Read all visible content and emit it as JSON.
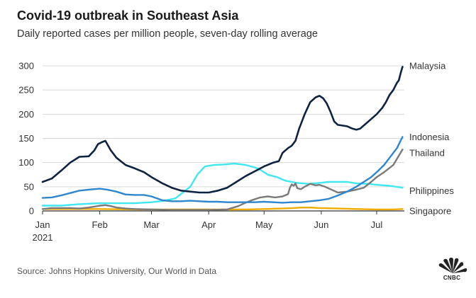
{
  "title": "Covid-19 outbreak in Southeast Asia",
  "subtitle": "Daily reported cases per million people, seven-day rolling average",
  "source": "Source: Johns Hopkins University, Our World in Data",
  "logo_text": "CNBC",
  "chart_data": {
    "type": "line",
    "title": "Covid-19 outbreak in Southeast Asia",
    "ylabel": "Daily reported cases per million people, seven-day rolling average",
    "xlabel": "",
    "ylim": [
      0,
      300
    ],
    "xlim": [
      0,
      196
    ],
    "y_ticks": [
      0,
      50,
      100,
      150,
      200,
      250,
      300
    ],
    "x_ticks": [
      {
        "pos": 0,
        "label": "Jan",
        "sublabel": "2021"
      },
      {
        "pos": 31,
        "label": "Feb",
        "sublabel": ""
      },
      {
        "pos": 59,
        "label": "Mar",
        "sublabel": ""
      },
      {
        "pos": 90,
        "label": "Apr",
        "sublabel": ""
      },
      {
        "pos": 120,
        "label": "May",
        "sublabel": ""
      },
      {
        "pos": 151,
        "label": "Jun",
        "sublabel": ""
      },
      {
        "pos": 181,
        "label": "Jul",
        "sublabel": ""
      }
    ],
    "grid": true,
    "series": [
      {
        "name": "Philippines",
        "color": "#3ee8f0",
        "x": [
          0,
          10,
          20,
          31,
          40,
          50,
          59,
          66,
          72,
          80,
          84,
          88,
          93,
          98,
          104,
          110,
          115,
          118,
          122,
          125,
          127,
          130,
          132,
          138,
          144,
          150,
          155,
          160,
          165,
          170,
          176,
          181,
          188,
          195
        ],
        "y": [
          11,
          11,
          14,
          16,
          16,
          16,
          18,
          21,
          26,
          50,
          76,
          92,
          95,
          96,
          98,
          95,
          90,
          85,
          75,
          72,
          70,
          65,
          62,
          58,
          56,
          58,
          60,
          60,
          60,
          57,
          56,
          54,
          52,
          48
        ]
      },
      {
        "name": "Singapore",
        "color": "#f0ab00",
        "x": [
          0,
          20,
          31,
          50,
          70,
          90,
          110,
          120,
          130,
          136,
          140,
          145,
          150,
          160,
          170,
          181,
          190,
          195
        ],
        "y": [
          4,
          4,
          4,
          3,
          3,
          3,
          3,
          4,
          5,
          6,
          7,
          7,
          6,
          5,
          4,
          3,
          3,
          4
        ]
      },
      {
        "name": "Thailand",
        "color": "#7a7a7a",
        "x": [
          0,
          5,
          10,
          15,
          20,
          25,
          28,
          31,
          34,
          37,
          40,
          45,
          50,
          59,
          70,
          80,
          90,
          100,
          106,
          110,
          114,
          118,
          122,
          126,
          130,
          133,
          134,
          135,
          136,
          137,
          138,
          140,
          142,
          145,
          148,
          150,
          153,
          156,
          160,
          165,
          170,
          174,
          178,
          181,
          185,
          190,
          195
        ],
        "y": [
          4,
          6,
          6,
          6,
          5,
          7,
          9,
          11,
          12,
          10,
          7,
          5,
          4,
          3,
          2,
          2,
          2,
          3,
          10,
          17,
          23,
          28,
          30,
          28,
          30,
          35,
          48,
          55,
          52,
          57,
          47,
          45,
          50,
          56,
          53,
          54,
          50,
          45,
          38,
          40,
          44,
          48,
          60,
          70,
          80,
          95,
          127
        ]
      },
      {
        "name": "Indonesia",
        "color": "#2e86cf",
        "x": [
          0,
          5,
          10,
          15,
          20,
          25,
          31,
          35,
          40,
          45,
          50,
          55,
          59,
          65,
          70,
          75,
          80,
          85,
          90,
          95,
          100,
          105,
          110,
          115,
          120,
          125,
          130,
          135,
          140,
          145,
          150,
          155,
          160,
          165,
          170,
          174,
          178,
          181,
          185,
          188,
          190,
          192,
          195
        ],
        "y": [
          27,
          28,
          32,
          37,
          42,
          44,
          46,
          44,
          40,
          34,
          33,
          33,
          30,
          22,
          20,
          20,
          21,
          20,
          19,
          19,
          18,
          18,
          18,
          18,
          19,
          18,
          17,
          18,
          18,
          20,
          22,
          25,
          32,
          40,
          50,
          60,
          70,
          80,
          95,
          110,
          120,
          130,
          153
        ]
      },
      {
        "name": "Malaysia",
        "color": "#0d2341",
        "x": [
          0,
          5,
          10,
          15,
          20,
          25,
          28,
          30,
          32,
          34,
          37,
          40,
          45,
          50,
          55,
          59,
          65,
          70,
          75,
          80,
          85,
          90,
          95,
          100,
          105,
          110,
          115,
          120,
          125,
          128,
          130,
          133,
          135,
          137,
          139,
          142,
          145,
          148,
          150,
          152,
          154,
          156,
          158,
          160,
          165,
          168,
          170,
          172,
          175,
          178,
          181,
          184,
          186,
          188,
          190,
          192,
          193,
          194,
          195
        ],
        "y": [
          60,
          67,
          83,
          100,
          112,
          113,
          125,
          138,
          142,
          145,
          125,
          110,
          95,
          88,
          80,
          70,
          57,
          48,
          42,
          40,
          38,
          38,
          42,
          48,
          60,
          72,
          82,
          92,
          100,
          103,
          120,
          130,
          135,
          145,
          170,
          200,
          225,
          235,
          238,
          233,
          222,
          205,
          185,
          178,
          175,
          170,
          168,
          170,
          180,
          190,
          200,
          213,
          225,
          240,
          250,
          265,
          270,
          285,
          298
        ]
      }
    ],
    "series_labels": [
      "Malaysia",
      "Indonesia",
      "Thailand",
      "Philippines",
      "Singapore"
    ]
  }
}
